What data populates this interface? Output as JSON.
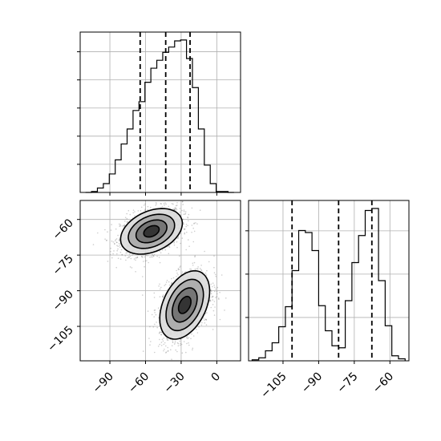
{
  "chart_data": {
    "type": "corner",
    "panels": [
      {
        "id": "hist-x",
        "type": "histogram",
        "variable": "x",
        "xlim": [
          -115,
          20
        ],
        "bins": {
          "edges": [
            -110.5,
            -105.5,
            -100.5,
            -95.5,
            -90.5,
            -85.5,
            -80.5,
            -75.5,
            -70.5,
            -65.5,
            -60.5,
            -55.5,
            -50.5,
            -45.5,
            -40.5,
            -35.5,
            -30.5,
            -25.5,
            -20.5,
            -15.5,
            -10.5,
            -5.5,
            -0.5,
            4.5,
            9.5,
            14.5
          ],
          "counts": [
            0,
            1,
            5,
            10,
            21,
            37,
            55,
            72,
            93,
            103,
            125,
            141,
            150,
            159,
            165,
            172,
            173,
            152,
            119,
            72,
            31,
            10,
            1,
            1,
            0
          ]
        },
        "ylim": [
          0,
          182
        ],
        "quantile_lines": [
          -64.5,
          -43,
          -22.5
        ],
        "grid": true,
        "tick_labels_shown": false
      },
      {
        "id": "hist-y",
        "type": "histogram",
        "variable": "y",
        "xlim": [
          -119.5,
          -52
        ],
        "bins": {
          "edges": [
            -118,
            -115.2,
            -112.4,
            -109.6,
            -106.8,
            -104,
            -101.2,
            -98.4,
            -95.6,
            -92.8,
            -90,
            -87.2,
            -84.4,
            -81.6,
            -78.8,
            -76,
            -73.2,
            -70.4,
            -67.6,
            -64.8,
            -62,
            -59.2,
            -56.4,
            -53.6
          ],
          "counts": [
            1,
            3,
            10,
            18,
            34,
            54,
            90,
            130,
            128,
            110,
            55,
            30,
            15,
            13,
            60,
            98,
            125,
            150,
            152,
            80,
            35,
            5,
            2
          ]
        },
        "ylim": [
          0,
          160
        ],
        "quantile_lines": [
          -101.2,
          -81.6,
          -67.6
        ],
        "grid": true,
        "x_ticks": [
          -105,
          -90,
          -75,
          -60
        ],
        "x_tick_labels": [
          "−105",
          "−90",
          "−75",
          "−60"
        ]
      },
      {
        "id": "scatter-xy",
        "type": "2d-density",
        "xlim": [
          -115,
          20
        ],
        "ylim": [
          -119.5,
          -52
        ],
        "x_ticks": [
          -90,
          -60,
          -30,
          0
        ],
        "x_tick_labels": [
          "−90",
          "−60",
          "−30",
          "0"
        ],
        "y_ticks": [
          -60,
          -75,
          -90,
          -105
        ],
        "y_tick_labels": [
          "−60",
          "−75",
          "−90",
          "−105"
        ],
        "clusters": [
          {
            "center": [
              -55,
              -65
            ],
            "sigma": [
              13,
              4.8
            ],
            "rho": 0.35,
            "weight": 0.5
          },
          {
            "center": [
              -27,
              -96
            ],
            "sigma": [
              10.5,
              7.2
            ],
            "rho": 0.4,
            "weight": 0.5
          }
        ],
        "contour_levels_sigma": [
          0.5,
          1.0,
          1.5,
          2.0
        ],
        "grid": true
      }
    ],
    "colors": {
      "line": "#000000",
      "grid": "#b0b0b0",
      "points": "#6f6f6f",
      "fill_levels": [
        "#dcdcdc",
        "#a9a9a9",
        "#707070",
        "#2e2e2e"
      ]
    }
  }
}
